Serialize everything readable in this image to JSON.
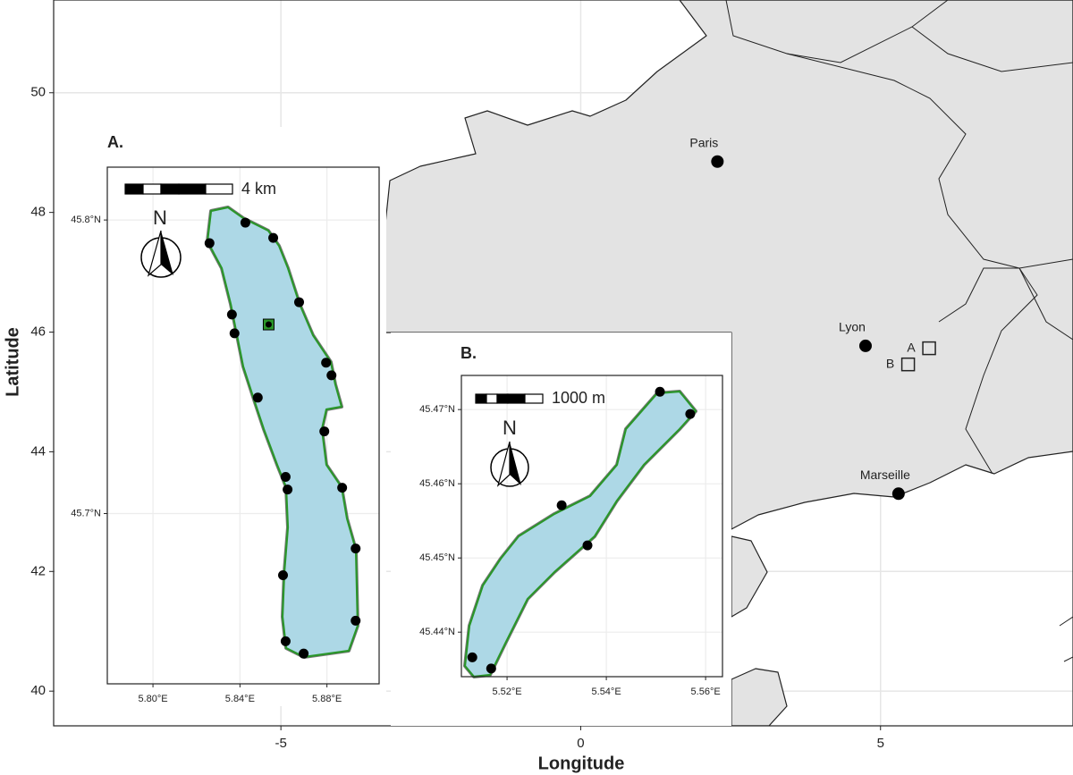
{
  "chart_data": {
    "type": "map",
    "x_label": "Longitude",
    "y_label": "Latitude",
    "xlim": [
      -8.79,
      8.21
    ],
    "ylim": [
      39.42,
      51.55
    ],
    "xticks": [
      -5,
      0,
      5
    ],
    "yticks": [
      40,
      42,
      44,
      46,
      48,
      50
    ],
    "grid": true,
    "places": {
      "names": [
        "Paris",
        "Lyon",
        "Marseille"
      ],
      "x": [
        2.28,
        4.75,
        5.3
      ],
      "y": [
        48.85,
        45.77,
        43.3
      ]
    },
    "sites": {
      "names": [
        "A",
        "B"
      ],
      "x": [
        5.81,
        5.46
      ],
      "y": [
        45.73,
        45.46
      ]
    },
    "insets": [
      {
        "title": "A.",
        "scale_label": "4 km",
        "north_label": "N",
        "xlim": [
          5.779,
          5.904
        ],
        "ylim": [
          45.642,
          45.818
        ],
        "xticks": [
          {
            "value": 5.8,
            "label": "5.80°E"
          },
          {
            "value": 5.84,
            "label": "5.84°E"
          },
          {
            "value": 5.88,
            "label": "5.88°E"
          }
        ],
        "yticks": [
          {
            "value": 45.8,
            "label": "45.8°N"
          },
          {
            "value": 45.7,
            "label": "45.7°N"
          }
        ],
        "points": {
          "x": [
            5.8425,
            5.8553,
            5.826,
            5.8672,
            5.8363,
            5.8375,
            5.8796,
            5.8821,
            5.8482,
            5.8788,
            5.861,
            5.8619,
            5.887,
            5.8932,
            5.8598,
            5.8932,
            5.861,
            5.8693
          ],
          "y": [
            45.7991,
            45.7939,
            45.7921,
            45.772,
            45.7678,
            45.7614,
            45.7514,
            45.7471,
            45.7395,
            45.728,
            45.7125,
            45.7082,
            45.7088,
            45.6881,
            45.679,
            45.6635,
            45.6565,
            45.6523
          ]
        },
        "site": {
          "x": [
            5.8532
          ],
          "y": [
            45.7644
          ]
        }
      },
      {
        "title": "B.",
        "scale_label": "1000 m",
        "north_label": "N",
        "xlim": [
          5.5108,
          5.5634
        ],
        "ylim": [
          45.434,
          45.4746
        ],
        "xticks": [
          {
            "value": 5.52,
            "label": "5.52°E"
          },
          {
            "value": 5.54,
            "label": "5.54°E"
          },
          {
            "value": 5.56,
            "label": "5.56°E"
          }
        ],
        "yticks": [
          {
            "value": 45.47,
            "label": "45.47°N"
          },
          {
            "value": 45.46,
            "label": "45.46°N"
          },
          {
            "value": 45.45,
            "label": "45.45°N"
          },
          {
            "value": 45.44,
            "label": "45.44°N"
          }
        ],
        "points": {
          "x": [
            5.5508,
            5.5569,
            5.531,
            5.5362,
            5.513,
            5.5168
          ],
          "y": [
            45.4724,
            45.4694,
            45.4571,
            45.4517,
            45.4366,
            45.4351
          ]
        },
        "site": {
          "x": [],
          "y": []
        }
      }
    ]
  }
}
